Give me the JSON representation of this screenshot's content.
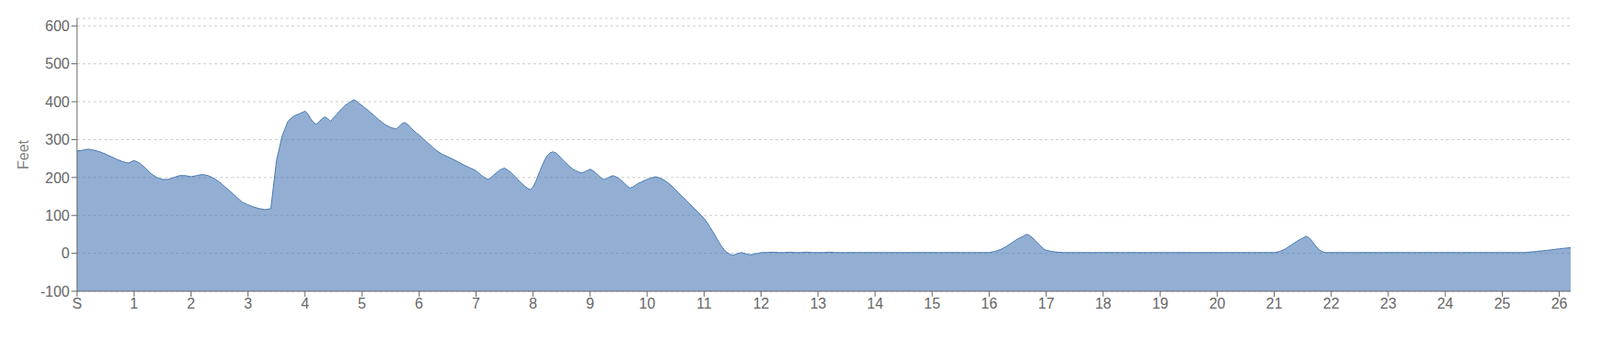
{
  "chart_data": {
    "type": "area",
    "ylabel": "Feet",
    "color": "#4a7ab5",
    "grid": true,
    "xlim": [
      0,
      26.2
    ],
    "ylim": [
      -100,
      620
    ],
    "xticks": [
      {
        "value": 0,
        "label": "S"
      },
      1,
      2,
      3,
      4,
      5,
      6,
      7,
      8,
      9,
      10,
      11,
      12,
      13,
      14,
      15,
      16,
      17,
      18,
      19,
      20,
      21,
      22,
      23,
      24,
      25,
      26
    ],
    "yticks": [
      -100,
      0,
      100,
      200,
      300,
      400,
      500,
      600
    ],
    "x": [
      0.0,
      0.1,
      0.2,
      0.3,
      0.4,
      0.5,
      0.6,
      0.7,
      0.8,
      0.9,
      1.0,
      1.1,
      1.2,
      1.3,
      1.4,
      1.5,
      1.6,
      1.7,
      1.8,
      1.9,
      2.0,
      2.1,
      2.2,
      2.3,
      2.4,
      2.5,
      2.6,
      2.7,
      2.8,
      2.9,
      3.0,
      3.1,
      3.2,
      3.3,
      3.4,
      3.5,
      3.6,
      3.7,
      3.8,
      3.9,
      4.0,
      4.05,
      4.1,
      4.15,
      4.2,
      4.25,
      4.3,
      4.35,
      4.4,
      4.45,
      4.5,
      4.55,
      4.6,
      4.65,
      4.7,
      4.75,
      4.8,
      4.85,
      4.9,
      4.95,
      5.0,
      5.1,
      5.2,
      5.3,
      5.4,
      5.5,
      5.6,
      5.65,
      5.7,
      5.75,
      5.8,
      5.85,
      5.9,
      5.95,
      6.0,
      6.1,
      6.2,
      6.3,
      6.4,
      6.5,
      6.6,
      6.7,
      6.8,
      6.9,
      7.0,
      7.1,
      7.2,
      7.25,
      7.3,
      7.35,
      7.4,
      7.45,
      7.5,
      7.55,
      7.6,
      7.65,
      7.7,
      7.75,
      7.8,
      7.85,
      7.9,
      7.95,
      8.0,
      8.05,
      8.1,
      8.15,
      8.2,
      8.25,
      8.3,
      8.35,
      8.4,
      8.45,
      8.5,
      8.55,
      8.6,
      8.65,
      8.7,
      8.75,
      8.8,
      8.85,
      8.9,
      8.95,
      9.0,
      9.05,
      9.1,
      9.15,
      9.2,
      9.25,
      9.3,
      9.35,
      9.4,
      9.45,
      9.5,
      9.55,
      9.6,
      9.65,
      9.7,
      9.75,
      9.8,
      9.85,
      9.9,
      9.95,
      10.0,
      10.05,
      10.1,
      10.15,
      10.2,
      10.25,
      10.3,
      10.35,
      10.4,
      10.45,
      10.5,
      10.55,
      10.6,
      10.65,
      10.7,
      10.75,
      10.8,
      10.85,
      10.9,
      10.95,
      11.0,
      11.05,
      11.1,
      11.15,
      11.2,
      11.25,
      11.3,
      11.35,
      11.4,
      11.45,
      11.5,
      11.55,
      11.6,
      11.65,
      11.7,
      11.75,
      11.8,
      11.85,
      11.9,
      11.95,
      12.0,
      12.1,
      12.2,
      12.3,
      12.4,
      12.5,
      12.6,
      12.7,
      12.8,
      12.9,
      13.0,
      13.1,
      13.2,
      13.3,
      13.4,
      13.5,
      13.6,
      13.7,
      13.8,
      13.9,
      14.0,
      14.1,
      14.2,
      14.3,
      14.4,
      14.5,
      14.6,
      14.7,
      14.8,
      14.9,
      15.0,
      15.1,
      15.2,
      15.3,
      15.4,
      15.5,
      15.6,
      15.7,
      15.8,
      15.9,
      16.0,
      16.1,
      16.2,
      16.3,
      16.4,
      16.5,
      16.6,
      16.65,
      16.7,
      16.75,
      16.8,
      16.85,
      16.9,
      16.95,
      17.0,
      17.1,
      17.2,
      17.3,
      17.4,
      17.5,
      17.6,
      17.7,
      17.8,
      17.9,
      18.0,
      18.1,
      18.2,
      18.3,
      18.4,
      18.5,
      18.6,
      18.7,
      18.8,
      18.9,
      19.0,
      19.1,
      19.2,
      19.3,
      19.4,
      19.5,
      19.6,
      19.7,
      19.8,
      19.9,
      20.0,
      20.1,
      20.2,
      20.3,
      20.4,
      20.5,
      20.6,
      20.7,
      20.8,
      20.9,
      21.0,
      21.1,
      21.2,
      21.3,
      21.4,
      21.5,
      21.55,
      21.6,
      21.65,
      21.7,
      21.75,
      21.8,
      21.85,
      21.9,
      22.0,
      22.1,
      22.2,
      22.3,
      22.4,
      22.5,
      22.6,
      22.7,
      22.8,
      22.9,
      23.0,
      23.2,
      23.4,
      23.6,
      23.8,
      24.0,
      24.2,
      24.4,
      24.6,
      24.8,
      25.0,
      25.2,
      25.4,
      25.6,
      25.8,
      26.0,
      26.2
    ],
    "values": [
      270,
      272,
      275,
      272,
      268,
      262,
      255,
      248,
      242,
      238,
      245,
      238,
      225,
      210,
      200,
      195,
      195,
      200,
      205,
      205,
      202,
      205,
      208,
      205,
      198,
      188,
      175,
      162,
      148,
      135,
      128,
      122,
      118,
      115,
      118,
      245,
      310,
      348,
      362,
      368,
      375,
      368,
      355,
      345,
      340,
      348,
      355,
      360,
      355,
      348,
      358,
      365,
      375,
      382,
      390,
      395,
      400,
      405,
      402,
      395,
      390,
      378,
      365,
      352,
      340,
      332,
      328,
      335,
      342,
      345,
      340,
      332,
      325,
      318,
      312,
      298,
      285,
      272,
      262,
      255,
      248,
      240,
      232,
      225,
      218,
      205,
      195,
      198,
      205,
      212,
      218,
      222,
      225,
      220,
      215,
      208,
      200,
      192,
      185,
      178,
      172,
      168,
      175,
      190,
      210,
      228,
      245,
      258,
      265,
      268,
      265,
      258,
      250,
      242,
      235,
      228,
      222,
      218,
      215,
      212,
      215,
      218,
      222,
      218,
      212,
      205,
      198,
      195,
      198,
      202,
      205,
      202,
      198,
      192,
      185,
      178,
      172,
      175,
      180,
      185,
      188,
      192,
      195,
      198,
      200,
      202,
      200,
      197,
      193,
      188,
      182,
      175,
      168,
      160,
      152,
      145,
      138,
      130,
      122,
      115,
      108,
      100,
      92,
      82,
      70,
      58,
      45,
      32,
      20,
      10,
      2,
      -2,
      -5,
      -3,
      0,
      2,
      0,
      -2,
      -4,
      -3,
      -1,
      0,
      2,
      2,
      3,
      2,
      2,
      3,
      2,
      2,
      3,
      2,
      2,
      2,
      3,
      2,
      2,
      2,
      2,
      2,
      2,
      2,
      2,
      2,
      2,
      2,
      2,
      2,
      2,
      2,
      2,
      2,
      2,
      2,
      2,
      2,
      2,
      2,
      2,
      2,
      2,
      2,
      2,
      5,
      10,
      18,
      28,
      38,
      45,
      50,
      48,
      42,
      35,
      28,
      20,
      12,
      8,
      5,
      3,
      2,
      2,
      2,
      2,
      2,
      2,
      2,
      2,
      2,
      2,
      2,
      2,
      2,
      2,
      2,
      2,
      2,
      2,
      2,
      2,
      2,
      2,
      2,
      2,
      2,
      2,
      2,
      2,
      2,
      2,
      2,
      2,
      2,
      2,
      2,
      2,
      2,
      2,
      5,
      12,
      22,
      32,
      40,
      45,
      42,
      35,
      25,
      15,
      8,
      4,
      2,
      2,
      2,
      2,
      2,
      2,
      2,
      2,
      2,
      2,
      2,
      2,
      2,
      2,
      2,
      2,
      2,
      2,
      2,
      2,
      2,
      2,
      2,
      2,
      5,
      8,
      12,
      15
    ]
  }
}
